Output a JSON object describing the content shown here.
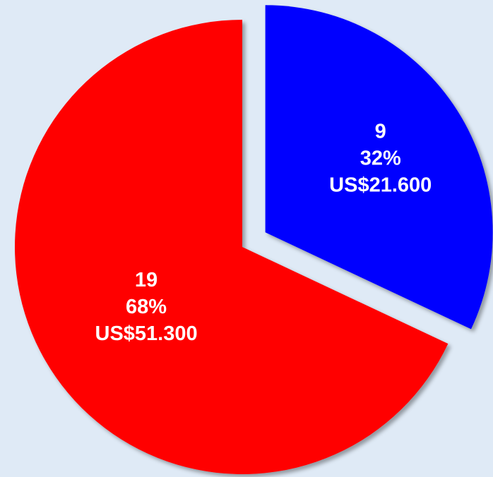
{
  "chart_data": {
    "type": "pie",
    "values": [
      32,
      68
    ],
    "value_labels": [
      "32%",
      "68%"
    ],
    "counts": [
      9,
      19
    ],
    "amount_labels": [
      "US$21.600",
      "US$51.300"
    ],
    "colors": [
      "#0000ff",
      "#ff0000"
    ],
    "explode": [
      0.12,
      0
    ]
  }
}
